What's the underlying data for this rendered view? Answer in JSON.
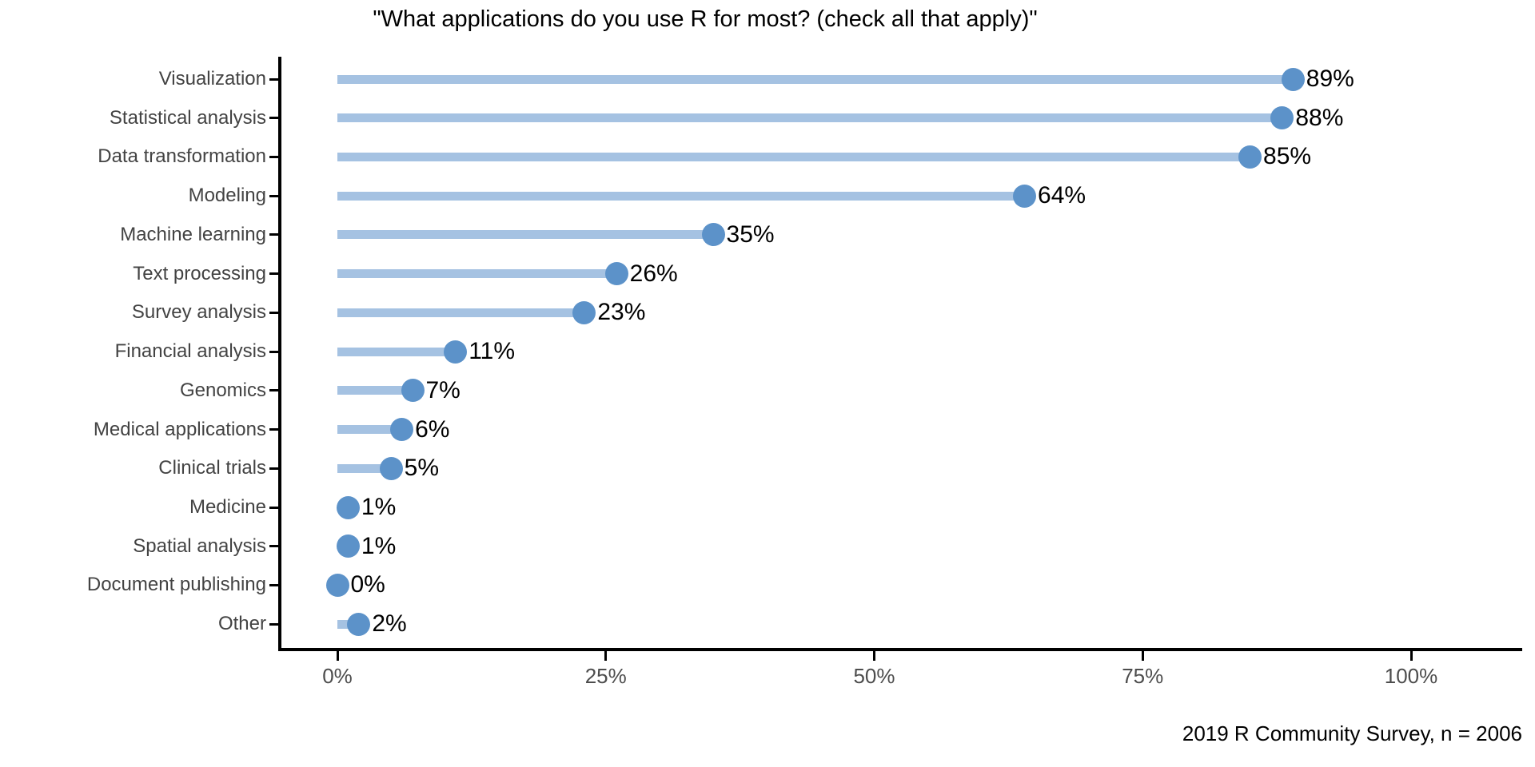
{
  "title": "\"What applications do you use R for most? (check all that apply)\"",
  "caption": "2019 R Community Survey, n = 2006",
  "chart_data": {
    "type": "bar",
    "subtype": "lollipop",
    "orientation": "horizontal",
    "title": "\"What applications do you use R for most? (check all that apply)\"",
    "caption": "2019 R Community Survey, n = 2006",
    "xlabel": "",
    "ylabel": "",
    "categories": [
      "Visualization",
      "Statistical analysis",
      "Data transformation",
      "Modeling",
      "Machine learning",
      "Text processing",
      "Survey analysis",
      "Financial analysis",
      "Genomics",
      "Medical applications",
      "Clinical trials",
      "Medicine",
      "Spatial analysis",
      "Document publishing",
      "Other"
    ],
    "values": [
      89,
      88,
      85,
      64,
      35,
      26,
      23,
      11,
      7,
      6,
      5,
      1,
      1,
      0,
      2
    ],
    "value_labels": [
      "89%",
      "88%",
      "85%",
      "64%",
      "35%",
      "26%",
      "23%",
      "11%",
      "7%",
      "6%",
      "5%",
      "1%",
      "1%",
      "0%",
      "2%"
    ],
    "x_ticks": [
      {
        "value": 0,
        "label": "0%"
      },
      {
        "value": 25,
        "label": "25%"
      },
      {
        "value": 50,
        "label": "50%"
      },
      {
        "value": 75,
        "label": "75%"
      },
      {
        "value": 100,
        "label": "100%"
      }
    ],
    "xlim": [
      0,
      110
    ],
    "grid": false,
    "legend": "none",
    "colors": {
      "dot": "#5C92C9",
      "stem": "#A5C2E2",
      "axis": "#000000",
      "category_text": "#434343",
      "tick_text": "#4d4d4d",
      "value_text": "#000000"
    }
  }
}
